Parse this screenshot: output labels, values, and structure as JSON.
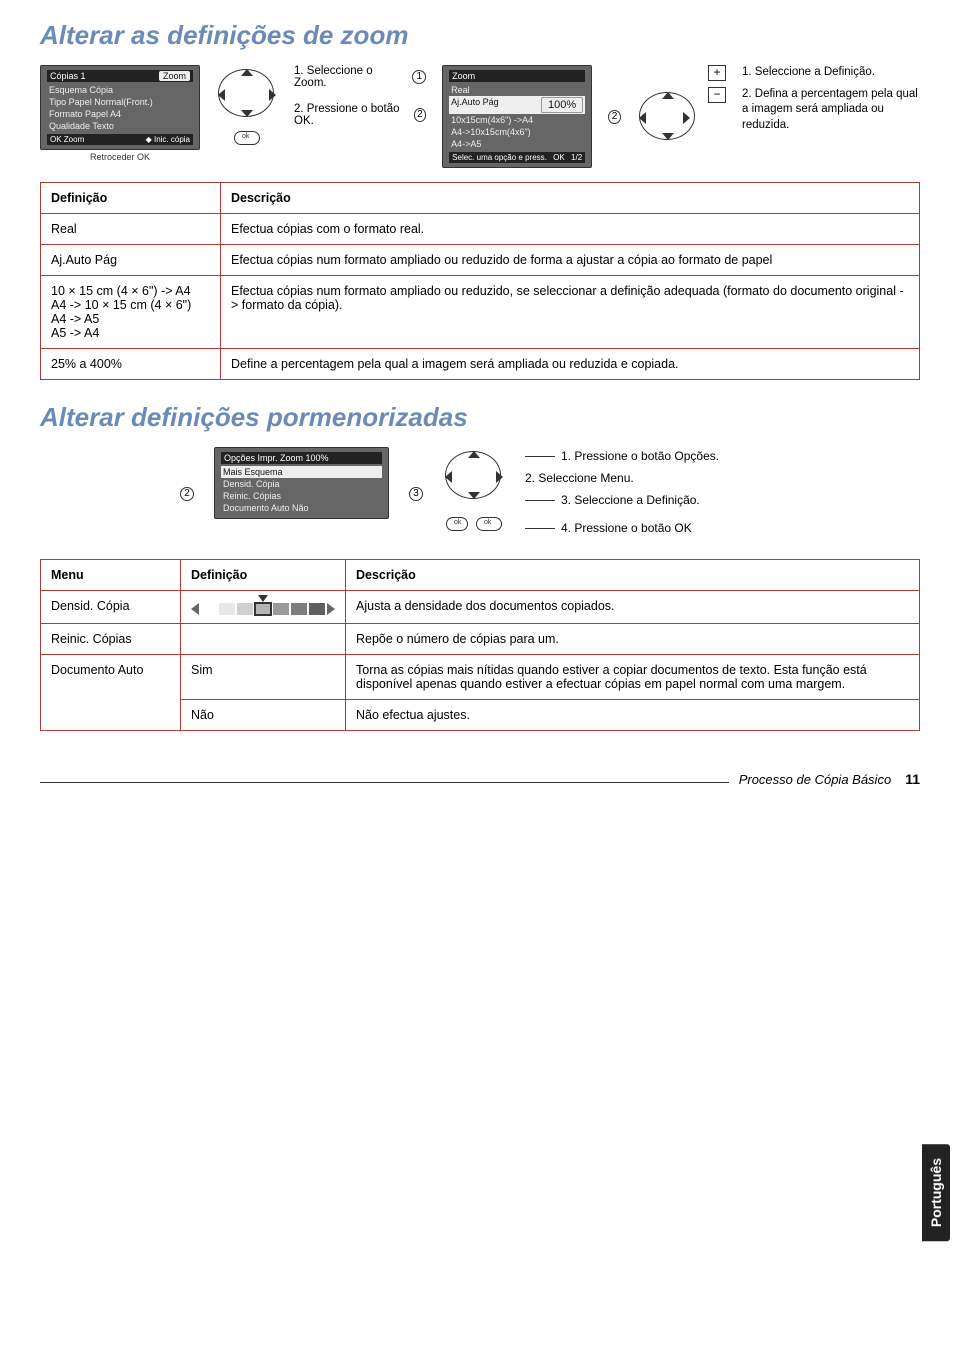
{
  "titles": {
    "zoom": "Alterar as definições de zoom",
    "detailed": "Alterar definições pormenorizadas"
  },
  "zoom_instr": {
    "lcd1_rows": [
      "Cópias  1",
      "Esquema Cópia",
      "Tipo Papel     Normal(Front.)",
      "Formato Papel  A4",
      "Qualidade       Texto"
    ],
    "lcd1_topright": "Zoom",
    "back_ok": "Retroceder  OK",
    "step1a": "1. Seleccione o Zoom.",
    "step2a": "2. Pressione o botão OK.",
    "lcd2_title": "Zoom",
    "lcd2_rows": [
      "Real",
      "Aj.Auto Pág",
      "10x15cm(4x6\") ->A4",
      "A4->10x15cm(4x6\")",
      "A4->A5"
    ],
    "lcd2_value": "100%",
    "lcd2_footer_l": "Selec. uma opção e press.",
    "lcd2_footer_r": "1/2",
    "step1b": "1. Seleccione a Definição.",
    "step2b": "2. Defina a percentagem pela qual a imagem será ampliada ou reduzida."
  },
  "table1": {
    "h1": "Definição",
    "h2": "Descrição",
    "rows": [
      {
        "c1": "Real",
        "c2": "Efectua cópias com o formato real."
      },
      {
        "c1": "Aj.Auto Pág",
        "c2": "Efectua cópias num formato ampliado ou reduzido de forma a ajustar a cópia ao formato de papel"
      },
      {
        "c1": "10 × 15 cm (4 × 6\") -> A4\nA4 -> 10 × 15 cm (4 × 6\")\nA4 -> A5\nA5 -> A4",
        "c2": "Efectua cópias num formato ampliado ou reduzido, se seleccionar a definição adequada (formato do documento original -> formato da cópia)."
      },
      {
        "c1": "25% a 400%",
        "c2": "Define a percentagem pela qual a imagem será ampliada ou reduzida e copiada."
      }
    ]
  },
  "detailed_instr": {
    "lcd_rows": [
      "Mais Esquema",
      "Densid. Cópia",
      "Reinic. Cópias",
      "Documento Auto     Não"
    ],
    "lcd_top": "Opções Impr.   Zoom  100%",
    "s1": "1. Pressione o botão Opções.",
    "s2": "2. Seleccione Menu.",
    "s3": "3. Seleccione a Definição.",
    "s4": "4. Pressione o botão OK"
  },
  "table2": {
    "h1": "Menu",
    "h2": "Definição",
    "h3": "Descrição",
    "r1c1": "Densid. Cópia",
    "r1c3": "Ajusta a densidade dos documentos copiados.",
    "r2c1": "Reinic. Cópias",
    "r2c3": "Repõe o número de cópias para um.",
    "r3c1": "Documento Auto",
    "r3c2": "Sim",
    "r3c3": "Torna as cópias mais nítidas quando estiver a copiar documentos de texto. Esta função está disponível apenas quando estiver a efectuar cópias em papel normal com uma margem.",
    "r4c2": "Não",
    "r4c3": "Não efectua ajustes."
  },
  "density_colors": [
    "#ffffff",
    "#e8e8e8",
    "#cfcfcf",
    "#b5b5b5",
    "#9a9a9a",
    "#7d7d7d",
    "#5f5f5f"
  ],
  "footer": {
    "label": "Processo de Cópia Básico",
    "page": "11"
  },
  "lang_tab": "Português"
}
